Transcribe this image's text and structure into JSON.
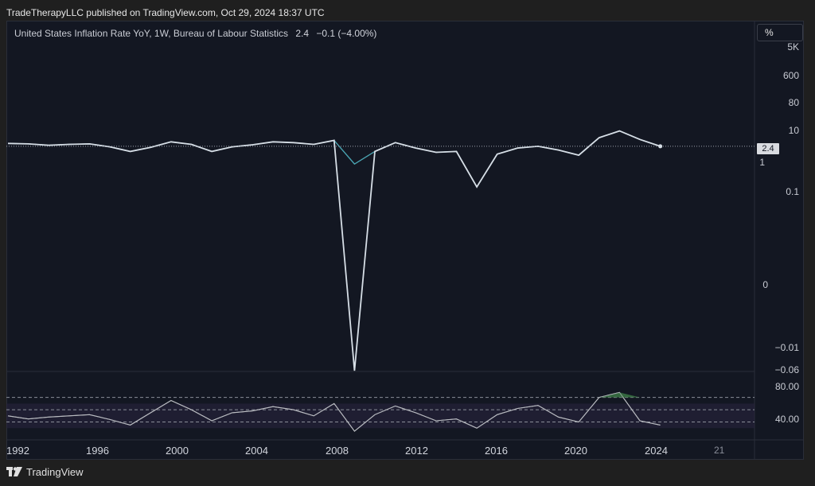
{
  "header": {
    "publish_line": "TradeTherapyLLC published on TradingView.com, Oct 29, 2024 18:37 UTC"
  },
  "legend": {
    "symbol": "United States Inflation Rate YoY, 1W, Bureau of Labour Statistics",
    "value": "2.4",
    "change": "−0.1 (−4.00%)"
  },
  "scale_mode_label": "%",
  "price_label": "2.4",
  "y_ticks_main": [
    "5K",
    "600",
    "80",
    "10",
    "1",
    "0.1",
    "0",
    "−0.01",
    "−0.06"
  ],
  "y_ticks_osc": [
    "80.00",
    "40.00"
  ],
  "x_ticks": [
    "1992",
    "1996",
    "2000",
    "2004",
    "2008",
    "2012",
    "2016",
    "2020",
    "2024",
    "21"
  ],
  "footer": {
    "brand": "TradingView"
  },
  "colors": {
    "background": "#131722",
    "price_line": "#d6dee6",
    "ma_orange": "#c77a2a",
    "ma_teal": "#3aa6b9",
    "ma_blue": "#3a5fd0",
    "osc_line": "#e6e6e6",
    "osc_band": "#2a2440",
    "osc_overbought_fill": "#3c7a46"
  },
  "chart_data": [
    {
      "type": "line",
      "title": "United States Inflation Rate YoY, 1W, Bureau of Labour Statistics",
      "y_scale": "log",
      "x": [
        1992,
        1993,
        1994,
        1995,
        1996,
        1997,
        1998,
        1999,
        2000,
        2001,
        2002,
        2003,
        2004,
        2005,
        2006,
        2007,
        2008,
        2009,
        2010,
        2011,
        2012,
        2013,
        2014,
        2015,
        2016,
        2017,
        2018,
        2019,
        2020,
        2021,
        2022,
        2023,
        2024
      ],
      "series": [
        {
          "values": [
            3.0,
            2.9,
            2.6,
            2.8,
            2.9,
            2.3,
            1.6,
            2.2,
            3.4,
            2.8,
            1.6,
            2.3,
            2.7,
            3.4,
            3.2,
            2.8,
            3.8,
            -0.4,
            1.6,
            3.2,
            2.1,
            1.5,
            1.6,
            0.1,
            1.3,
            2.1,
            2.4,
            1.8,
            1.2,
            4.7,
            8.0,
            4.1,
            2.4
          ]
        }
      ],
      "last_value": 2.4,
      "ylim": [
        -0.06,
        5000
      ]
    },
    {
      "type": "line",
      "y_ticks": [
        40,
        80
      ],
      "band": [
        30,
        70
      ],
      "x": [
        1992,
        1993,
        1994,
        1995,
        1996,
        1997,
        1998,
        1999,
        2000,
        2001,
        2002,
        2003,
        2004,
        2005,
        2006,
        2007,
        2008,
        2009,
        2010,
        2011,
        2012,
        2013,
        2014,
        2015,
        2016,
        2017,
        2018,
        2019,
        2020,
        2021,
        2022,
        2023,
        2024
      ],
      "series": [
        {
          "values": [
            50,
            45,
            48,
            50,
            52,
            44,
            35,
            55,
            75,
            60,
            42,
            55,
            58,
            65,
            60,
            50,
            70,
            25,
            52,
            66,
            55,
            42,
            45,
            30,
            52,
            62,
            67,
            48,
            40,
            80,
            88,
            42,
            35
          ]
        }
      ]
    }
  ]
}
